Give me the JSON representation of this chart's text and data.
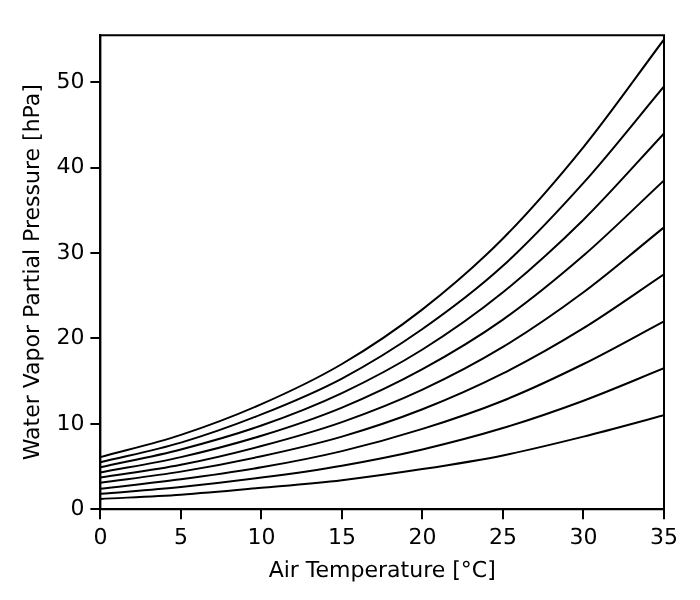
{
  "chart_data": {
    "type": "line",
    "xlabel": "Air Temperature [°C]",
    "ylabel": "Water Vapor Partial Pressure [hPa]",
    "x": [
      0,
      5,
      10,
      15,
      20,
      25,
      30,
      35
    ],
    "xlim": [
      0,
      35
    ],
    "xticks": [
      0,
      5,
      10,
      15,
      20,
      25,
      30,
      35
    ],
    "ylim": [
      0,
      55.5
    ],
    "yticks": [
      0,
      10,
      20,
      30,
      40,
      50
    ],
    "grid": false,
    "legend": false,
    "marker": "none",
    "line_style": "solid",
    "series": [
      {
        "color": "#000000",
        "values": [
          1.2,
          1.7,
          2.5,
          3.4,
          4.7,
          6.3,
          8.5,
          11.0
        ]
      },
      {
        "color": "#000000",
        "values": [
          1.8,
          2.6,
          3.7,
          5.1,
          7.0,
          9.5,
          12.7,
          16.5
        ]
      },
      {
        "color": "#000000",
        "values": [
          2.4,
          3.5,
          4.9,
          6.8,
          9.4,
          12.7,
          17.0,
          22.0
        ]
      },
      {
        "color": "#000000",
        "values": [
          3.1,
          4.4,
          6.2,
          8.5,
          11.7,
          15.9,
          21.2,
          27.5
        ]
      },
      {
        "color": "#000000",
        "values": [
          3.7,
          5.2,
          7.4,
          10.2,
          14.0,
          19.0,
          25.4,
          33.0
        ]
      },
      {
        "color": "#000000",
        "values": [
          4.3,
          6.1,
          8.6,
          11.9,
          16.4,
          22.2,
          29.7,
          38.5
        ]
      },
      {
        "color": "#000000",
        "values": [
          4.9,
          7.0,
          9.8,
          13.6,
          18.7,
          25.4,
          33.9,
          44.0
        ]
      },
      {
        "color": "#000000",
        "values": [
          5.5,
          7.8,
          11.1,
          15.3,
          21.1,
          28.5,
          38.2,
          49.5
        ]
      },
      {
        "color": "#000000",
        "values": [
          6.1,
          8.7,
          12.3,
          17.0,
          23.4,
          31.7,
          42.4,
          55.0
        ]
      }
    ]
  }
}
